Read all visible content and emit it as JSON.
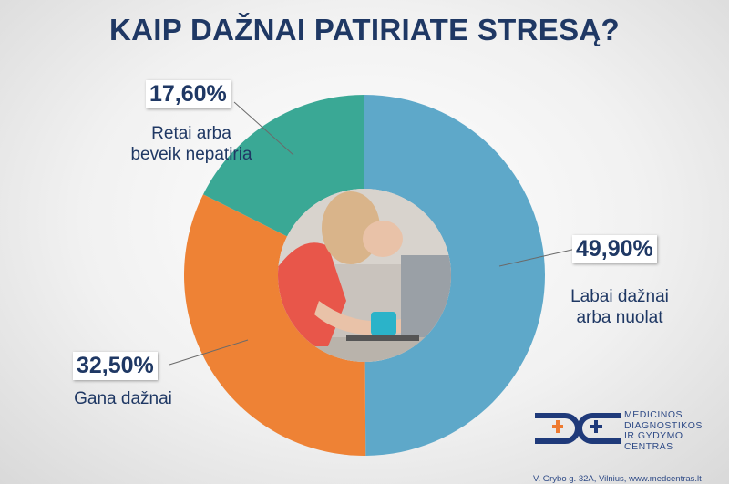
{
  "chart_data": {
    "type": "pie",
    "donut": true,
    "title": "KAIP DAŽNAI PATIRIATE STRESĄ?",
    "categories": [
      "Labai dažnai arba nuolat",
      "Gana dažnai",
      "Retai arba beveik nepatiria"
    ],
    "label_lines": [
      [
        "Labai dažnai",
        "arba nuolat"
      ],
      [
        "Gana dažnai"
      ],
      [
        "Retai arba",
        "beveik nepatiria"
      ]
    ],
    "values": [
      49.9,
      32.5,
      17.6
    ],
    "value_labels": [
      "49,90%",
      "32,50%",
      "17,60%"
    ],
    "colors": [
      "#5ea8c9",
      "#ee8235",
      "#3aa895"
    ],
    "unit": "%"
  },
  "logo": {
    "lines": [
      "MEDICINOS",
      "DIAGNOSTIKOS",
      "IR GYDYMO",
      "CENTRAS"
    ],
    "address": "V. Grybo g. 32A, Vilnius, www.medcentras.lt",
    "colors": {
      "navy": "#1f3a7a",
      "orange": "#ee7a30"
    }
  }
}
